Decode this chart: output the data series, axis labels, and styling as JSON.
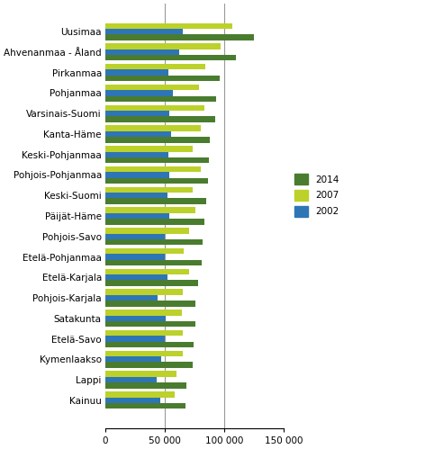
{
  "categories": [
    "Uusimaa",
    "Ahvenanmaa - Åland",
    "Pirkanmaa",
    "Pohjanmaa",
    "Varsinais-Suomi",
    "Kanta-Häme",
    "Keski-Pohjanmaa",
    "Pohjois-Pohjanmaa",
    "Keski-Suomi",
    "Päijät-Häme",
    "Pohjois-Savo",
    "Etelä-Pohjanmaa",
    "Etelä-Karjala",
    "Pohjois-Karjala",
    "Satakunta",
    "Etelä-Savo",
    "Kymenlaakso",
    "Lappi",
    "Kainuu"
  ],
  "values_2014": [
    125000,
    110000,
    96000,
    93000,
    92000,
    88000,
    87000,
    86000,
    85000,
    83000,
    82000,
    81000,
    78000,
    76000,
    76000,
    74000,
    73000,
    68000,
    67000
  ],
  "values_2007": [
    107000,
    97000,
    84000,
    79000,
    83000,
    80000,
    73000,
    80000,
    73000,
    76000,
    70000,
    66000,
    70000,
    65000,
    64000,
    65000,
    65000,
    60000,
    58000
  ],
  "values_2002": [
    65000,
    62000,
    53000,
    57000,
    54000,
    55000,
    53000,
    54000,
    52000,
    54000,
    50000,
    50000,
    52000,
    44000,
    51000,
    50000,
    47000,
    43000,
    46000
  ],
  "color_2014": "#4a7c2f",
  "color_2007": "#bcd12a",
  "color_2002": "#2e75b6",
  "xlim": [
    0,
    150000
  ],
  "xticks": [
    0,
    50000,
    100000,
    150000
  ],
  "xticklabels": [
    "0",
    "50 000",
    "100 000",
    "150 000"
  ],
  "legend_labels": [
    "2014",
    "2007",
    "2002"
  ],
  "bar_height": 0.28,
  "background_color": "#ffffff",
  "font_size_labels": 7.5,
  "font_size_ticks": 7.5
}
